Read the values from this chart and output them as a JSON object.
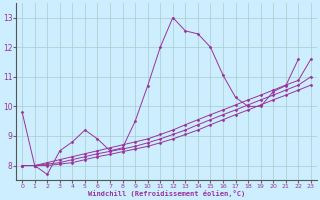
{
  "xlabel": "Windchill (Refroidissement éolien,°C)",
  "xlim": [
    -0.5,
    23.5
  ],
  "ylim": [
    7.5,
    13.5
  ],
  "yticks": [
    8,
    9,
    10,
    11,
    12,
    13
  ],
  "xticks": [
    0,
    1,
    2,
    3,
    4,
    5,
    6,
    7,
    8,
    9,
    10,
    11,
    12,
    13,
    14,
    15,
    16,
    17,
    18,
    19,
    20,
    21,
    22,
    23
  ],
  "background_color": "#cceeff",
  "line_color": "#993399",
  "grid_color": "#aacccc",
  "series": [
    [
      9.8,
      8.0,
      7.7,
      8.5,
      8.8,
      9.2,
      8.9,
      8.5,
      8.6,
      9.5,
      10.7,
      12.0,
      13.0,
      12.55,
      12.45,
      12.0,
      11.05,
      10.3,
      10.0,
      10.0,
      10.5,
      10.7,
      11.6,
      null
    ],
    [
      8.0,
      8.0,
      8.1,
      8.2,
      8.3,
      8.4,
      8.5,
      8.6,
      8.7,
      8.8,
      8.9,
      9.05,
      9.2,
      9.38,
      9.55,
      9.72,
      9.88,
      10.05,
      10.22,
      10.38,
      10.55,
      10.72,
      10.88,
      11.6
    ],
    [
      8.0,
      8.0,
      8.05,
      8.1,
      8.2,
      8.3,
      8.4,
      8.48,
      8.56,
      8.65,
      8.77,
      8.9,
      9.05,
      9.2,
      9.38,
      9.55,
      9.72,
      9.88,
      10.05,
      10.22,
      10.38,
      10.55,
      10.72,
      11.0
    ],
    [
      8.0,
      8.0,
      8.0,
      8.05,
      8.1,
      8.2,
      8.3,
      8.38,
      8.47,
      8.56,
      8.65,
      8.77,
      8.9,
      9.05,
      9.2,
      9.38,
      9.55,
      9.72,
      9.88,
      10.05,
      10.22,
      10.38,
      10.55,
      10.72
    ]
  ]
}
